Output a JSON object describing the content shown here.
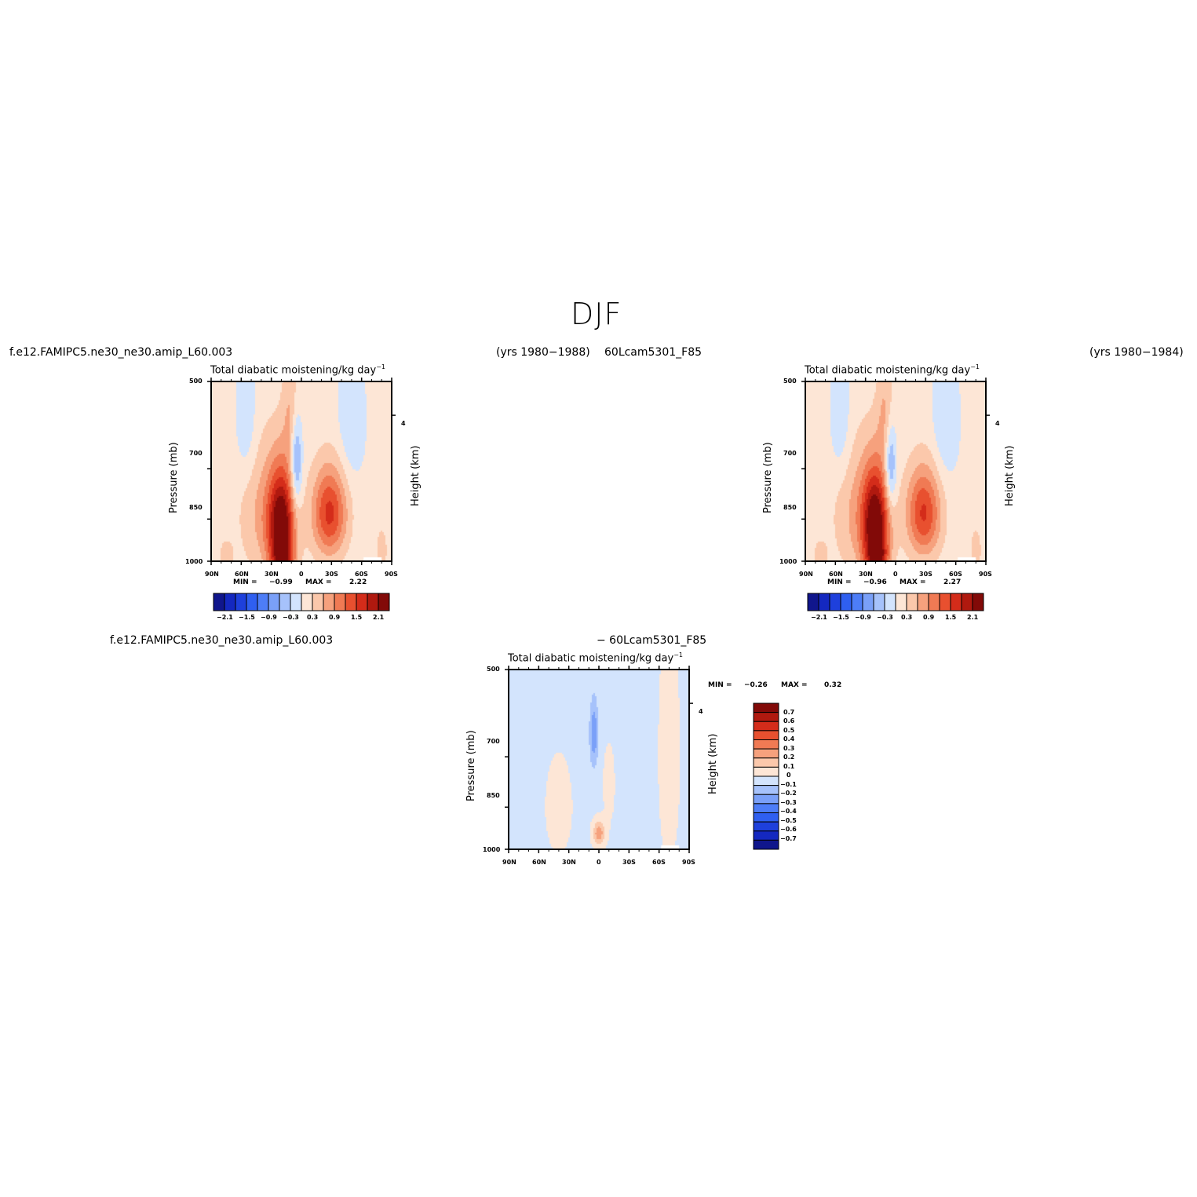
{
  "figure": {
    "season": "DJF",
    "case1_name": "f.e12.FAMIPC5.ne30_ne30.amip_L60.003",
    "case1_years": "(yrs 1980−1988)",
    "case2_name": "60Lcam5301_F85",
    "case2_years": "(yrs 1980−1984)",
    "diff_left": "f.e12.FAMIPC5.ne30_ne30.amip_L60.003",
    "diff_right": "− 60Lcam5301_F85"
  },
  "chart_data": [
    {
      "type": "heatmap",
      "title": "Total diabatic moistening/kg day",
      "title_superscript": "−1",
      "ylabel": "Pressure (mb)",
      "ylabel_right": "Height (km)",
      "x_ticks": [
        "90N",
        "60N",
        "30N",
        "0",
        "30S",
        "60S",
        "90S"
      ],
      "y_ticks": [
        "500",
        "700",
        "850",
        "1000"
      ],
      "right_ticks": [
        "4"
      ],
      "min_label": "MIN =",
      "min_value": "−0.99",
      "max_label": "MAX =",
      "max_value": "2.22",
      "colorbar_labels": [
        "−2.1",
        "−1.5",
        "−0.9",
        "−0.3",
        "0.3",
        "0.9",
        "1.5",
        "2.1"
      ],
      "colors": [
        "#10168c",
        "#1428c0",
        "#1e40dc",
        "#2f5ff0",
        "#4d7df7",
        "#7aa0f8",
        "#a6c2fb",
        "#d3e4fd",
        "#fde6d6",
        "#fbc8ab",
        "#f6a17d",
        "#f07a54",
        "#e8502f",
        "#d42c1a",
        "#b0190f",
        "#820a08"
      ],
      "fields": {
        "background": 0.1,
        "features": [
          {
            "lat": 20,
            "p": 880,
            "sx": 9,
            "sy": 130,
            "amp": 2.2
          },
          {
            "lat": 18,
            "p": 990,
            "sx": 7,
            "sy": 40,
            "amp": 0.9
          },
          {
            "lat": -28,
            "p": 830,
            "sx": 12,
            "sy": 100,
            "amp": 1.5
          },
          {
            "lat": 35,
            "p": 830,
            "sx": 18,
            "sy": 150,
            "amp": 0.6
          },
          {
            "lat": 5,
            "p": 680,
            "sx": 4,
            "sy": 90,
            "amp": -1.0
          },
          {
            "lat": 55,
            "p": 580,
            "sx": 7,
            "sy": 100,
            "amp": -0.4
          },
          {
            "lat": -50,
            "p": 580,
            "sx": 9,
            "sy": 100,
            "amp": -0.4
          },
          {
            "lat": 10,
            "p": 560,
            "sx": 6,
            "sy": 80,
            "amp": 0.5
          },
          {
            "lat": -80,
            "p": 960,
            "sx": 4,
            "sy": 60,
            "amp": 0.4
          },
          {
            "lat": 75,
            "p": 980,
            "sx": 5,
            "sy": 40,
            "amp": 0.4
          }
        ]
      }
    },
    {
      "type": "heatmap",
      "title": "Total diabatic moistening/kg day",
      "title_superscript": "−1",
      "ylabel": "Pressure (mb)",
      "ylabel_right": "Height (km)",
      "x_ticks": [
        "90N",
        "60N",
        "30N",
        "0",
        "30S",
        "60S",
        "90S"
      ],
      "y_ticks": [
        "500",
        "700",
        "850",
        "1000"
      ],
      "right_ticks": [
        "4"
      ],
      "min_label": "MIN =",
      "min_value": "−0.96",
      "max_label": "MAX =",
      "max_value": "2.27",
      "colorbar_labels": [
        "−2.1",
        "−1.5",
        "−0.9",
        "−0.3",
        "0.3",
        "0.9",
        "1.5",
        "2.1"
      ],
      "colors": [
        "#10168c",
        "#1428c0",
        "#1e40dc",
        "#2f5ff0",
        "#4d7df7",
        "#7aa0f8",
        "#a6c2fb",
        "#d3e4fd",
        "#fde6d6",
        "#fbc8ab",
        "#f6a17d",
        "#f07a54",
        "#e8502f",
        "#d42c1a",
        "#b0190f",
        "#820a08"
      ],
      "fields": {
        "background": 0.1,
        "features": [
          {
            "lat": 20,
            "p": 880,
            "sx": 9,
            "sy": 130,
            "amp": 2.25
          },
          {
            "lat": 18,
            "p": 990,
            "sx": 7,
            "sy": 40,
            "amp": 0.9
          },
          {
            "lat": -28,
            "p": 830,
            "sx": 12,
            "sy": 100,
            "amp": 1.45
          },
          {
            "lat": 35,
            "p": 830,
            "sx": 18,
            "sy": 150,
            "amp": 0.6
          },
          {
            "lat": 5,
            "p": 690,
            "sx": 4,
            "sy": 80,
            "amp": -0.95
          },
          {
            "lat": 55,
            "p": 580,
            "sx": 7,
            "sy": 100,
            "amp": -0.4
          },
          {
            "lat": -50,
            "p": 580,
            "sx": 9,
            "sy": 100,
            "amp": -0.4
          },
          {
            "lat": 10,
            "p": 560,
            "sx": 6,
            "sy": 80,
            "amp": 0.5
          },
          {
            "lat": -80,
            "p": 960,
            "sx": 4,
            "sy": 60,
            "amp": 0.4
          },
          {
            "lat": 75,
            "p": 980,
            "sx": 5,
            "sy": 40,
            "amp": 0.4
          }
        ]
      }
    },
    {
      "type": "heatmap",
      "title": "Total diabatic moistening/kg day",
      "title_superscript": "−1",
      "ylabel": "Pressure (mb)",
      "ylabel_right": "Height (km)",
      "x_ticks": [
        "90N",
        "60N",
        "30N",
        "0",
        "30S",
        "60S",
        "90S"
      ],
      "y_ticks": [
        "500",
        "700",
        "850",
        "1000"
      ],
      "right_ticks": [
        "4"
      ],
      "min_label": "MIN =",
      "min_value": "−0.26",
      "max_label": "MAX =",
      "max_value": "0.32",
      "colorbar_labels": [
        "0.7",
        "0.6",
        "0.5",
        "0.4",
        "0.3",
        "0.2",
        "0.1",
        "0",
        "−0.1",
        "−0.2",
        "−0.3",
        "−0.4",
        "−0.5",
        "−0.6",
        "−0.7"
      ],
      "colors": [
        "#820a08",
        "#b0190f",
        "#d42c1a",
        "#e8502f",
        "#f07a54",
        "#f6a17d",
        "#fbc8ab",
        "#fde6d6",
        "#d3e4fd",
        "#a6c2fb",
        "#7aa0f8",
        "#4d7df7",
        "#2f5ff0",
        "#1e40dc",
        "#1428c0",
        "#10168c"
      ],
      "fields": {
        "background": -0.02,
        "features": [
          {
            "lat": 5,
            "p": 640,
            "sx": 3,
            "sy": 60,
            "amp": -0.26
          },
          {
            "lat": 0,
            "p": 940,
            "sx": 4,
            "sy": 30,
            "amp": 0.3
          },
          {
            "lat": -70,
            "p": 700,
            "sx": 8,
            "sy": 250,
            "amp": 0.05
          },
          {
            "lat": 40,
            "p": 850,
            "sx": 10,
            "sy": 120,
            "amp": 0.05
          },
          {
            "lat": -10,
            "p": 780,
            "sx": 5,
            "sy": 100,
            "amp": 0.04
          }
        ]
      }
    }
  ]
}
